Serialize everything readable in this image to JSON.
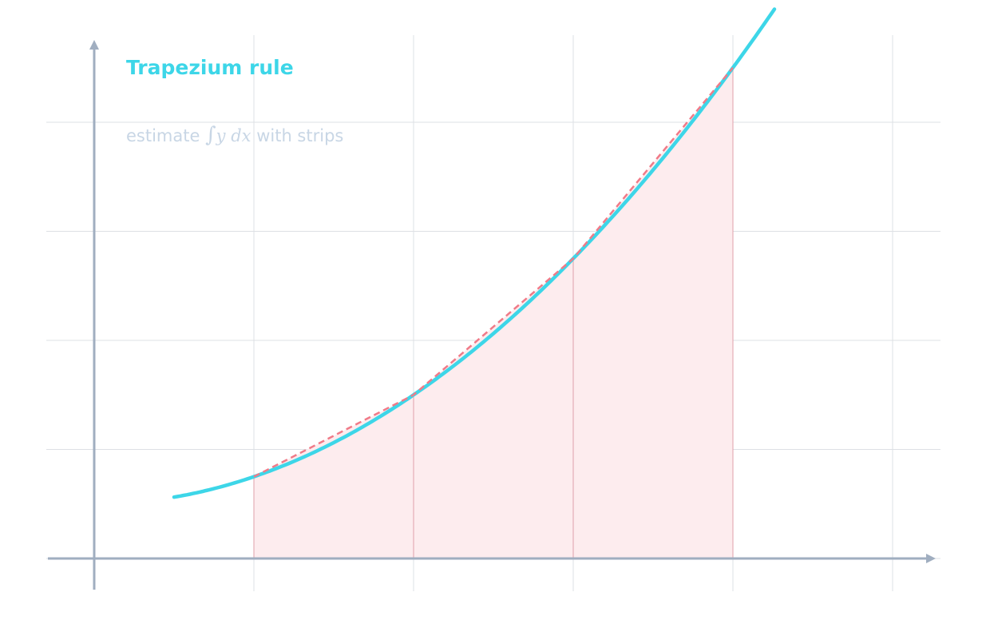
{
  "title": "Trapezium rule",
  "subtitle": {
    "prefix": "estimate",
    "integral": "∫",
    "y": "y",
    "dx": "dx",
    "suffix": "with strips"
  }
}
